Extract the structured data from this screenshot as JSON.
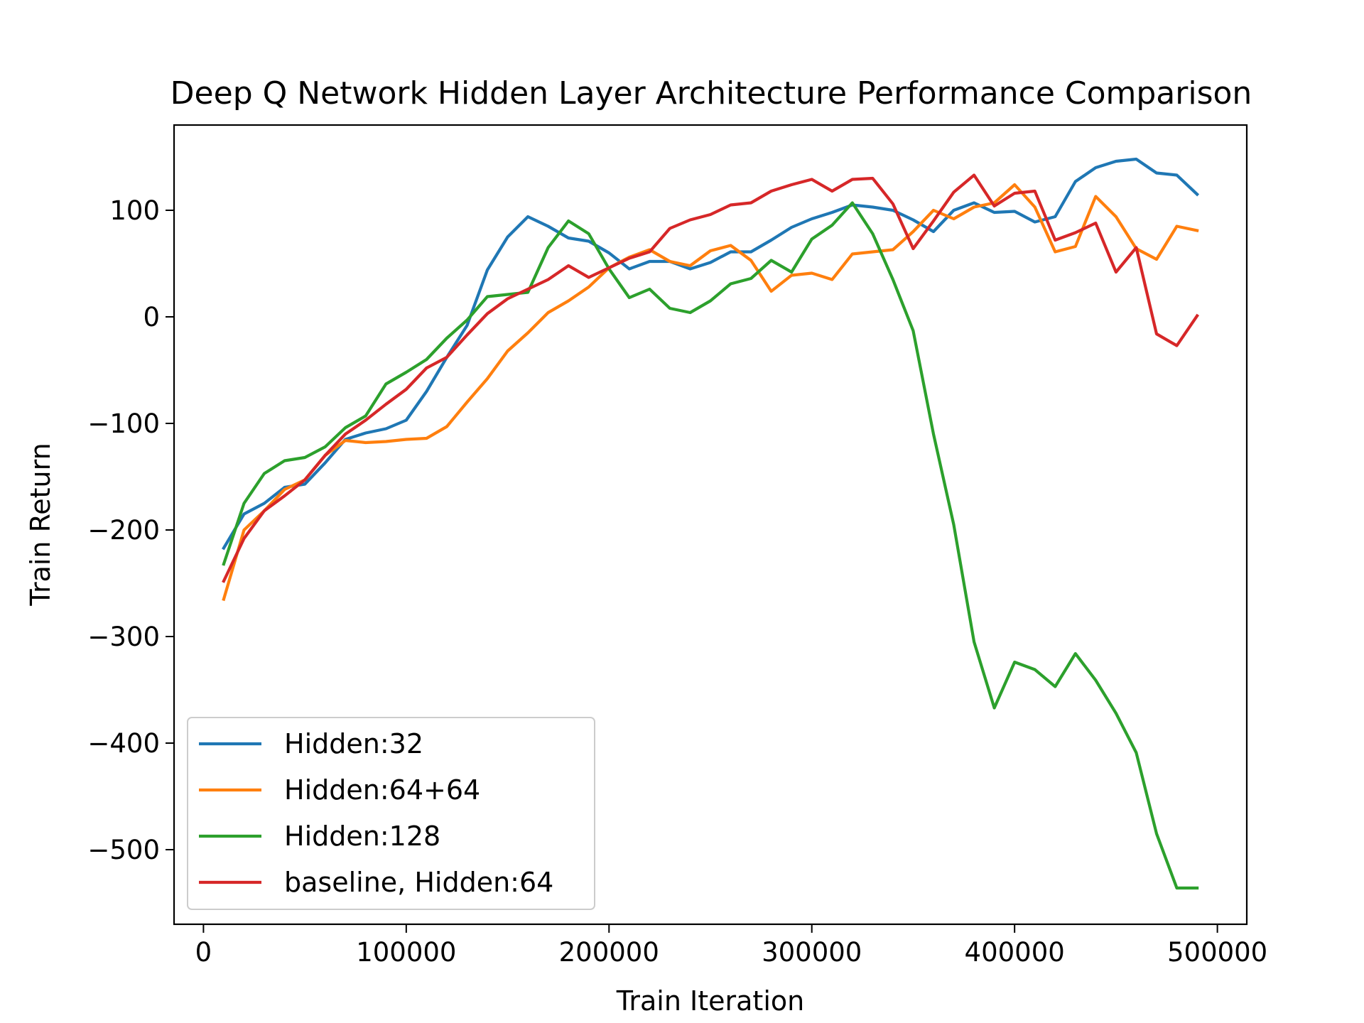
{
  "chart_data": {
    "type": "line",
    "title": "Deep Q Network Hidden Layer Architecture Performance Comparison",
    "xlabel": "Train Iteration",
    "ylabel": "Train Return",
    "xlim": [
      -14500,
      514500
    ],
    "ylim": [
      -570,
      180
    ],
    "xticks": [
      0,
      100000,
      200000,
      300000,
      400000,
      500000
    ],
    "xtick_labels": [
      "0",
      "100000",
      "200000",
      "300000",
      "400000",
      "500000"
    ],
    "yticks": [
      -500,
      -400,
      -300,
      -200,
      -100,
      0,
      100
    ],
    "ytick_labels": [
      "−500",
      "−400",
      "−300",
      "−200",
      "−100",
      "0",
      "100"
    ],
    "grid": false,
    "legend_position": "lower-left",
    "x": [
      10000,
      20000,
      30000,
      40000,
      50000,
      60000,
      70000,
      80000,
      90000,
      100000,
      110000,
      120000,
      130000,
      140000,
      150000,
      160000,
      170000,
      180000,
      190000,
      200000,
      210000,
      220000,
      230000,
      240000,
      250000,
      260000,
      270000,
      280000,
      290000,
      300000,
      310000,
      320000,
      330000,
      340000,
      350000,
      360000,
      370000,
      380000,
      390000,
      400000,
      410000,
      420000,
      430000,
      440000,
      450000,
      460000,
      470000,
      480000,
      490000
    ],
    "series": [
      {
        "name": "Hidden:32",
        "color": "#1f77b4",
        "values": [
          -217,
          -185,
          -175,
          -160,
          -157,
          -137,
          -115,
          -109,
          -105,
          -97,
          -70,
          -38,
          -8,
          44,
          75,
          94,
          85,
          74,
          71,
          60,
          45,
          52,
          52,
          45,
          51,
          61,
          61,
          72,
          84,
          92,
          98,
          105,
          103,
          100,
          91,
          80,
          100,
          107,
          98,
          99,
          89,
          94,
          127,
          140,
          146,
          148,
          135,
          133,
          115
        ]
      },
      {
        "name": "Hidden:64+64",
        "color": "#ff7f0e",
        "values": [
          -265,
          -200,
          -182,
          -162,
          -153,
          -130,
          -116,
          -118,
          -117,
          -115,
          -114,
          -103,
          -80,
          -58,
          -32,
          -15,
          4,
          15,
          28,
          46,
          56,
          63,
          52,
          48,
          62,
          67,
          53,
          24,
          39,
          41,
          35,
          59,
          61,
          63,
          80,
          100,
          92,
          103,
          107,
          124,
          103,
          61,
          66,
          113,
          94,
          64,
          54,
          85,
          81
        ]
      },
      {
        "name": "Hidden:128",
        "color": "#2ca02c",
        "values": [
          -232,
          -175,
          -147,
          -135,
          -132,
          -122,
          -104,
          -93,
          -63,
          -52,
          -40,
          -20,
          -3,
          19,
          21,
          23,
          65,
          90,
          78,
          45,
          18,
          26,
          8,
          4,
          15,
          31,
          36,
          53,
          42,
          73,
          86,
          107,
          78,
          35,
          -13,
          -110,
          -195,
          -305,
          -367,
          -324,
          -331,
          -347,
          -316,
          -341,
          -372,
          -409,
          -485,
          -536,
          -536
        ]
      },
      {
        "name": "baseline, Hidden:64",
        "color": "#d62728",
        "values": [
          -248,
          -208,
          -182,
          -168,
          -153,
          -130,
          -110,
          -97,
          -82,
          -68,
          -48,
          -38,
          -17,
          3,
          17,
          26,
          35,
          48,
          37,
          46,
          55,
          61,
          83,
          91,
          96,
          105,
          107,
          118,
          124,
          129,
          118,
          129,
          130,
          106,
          64,
          90,
          117,
          133,
          104,
          116,
          118,
          72,
          79,
          88,
          42,
          65,
          -16,
          -27,
          1
        ]
      }
    ]
  }
}
